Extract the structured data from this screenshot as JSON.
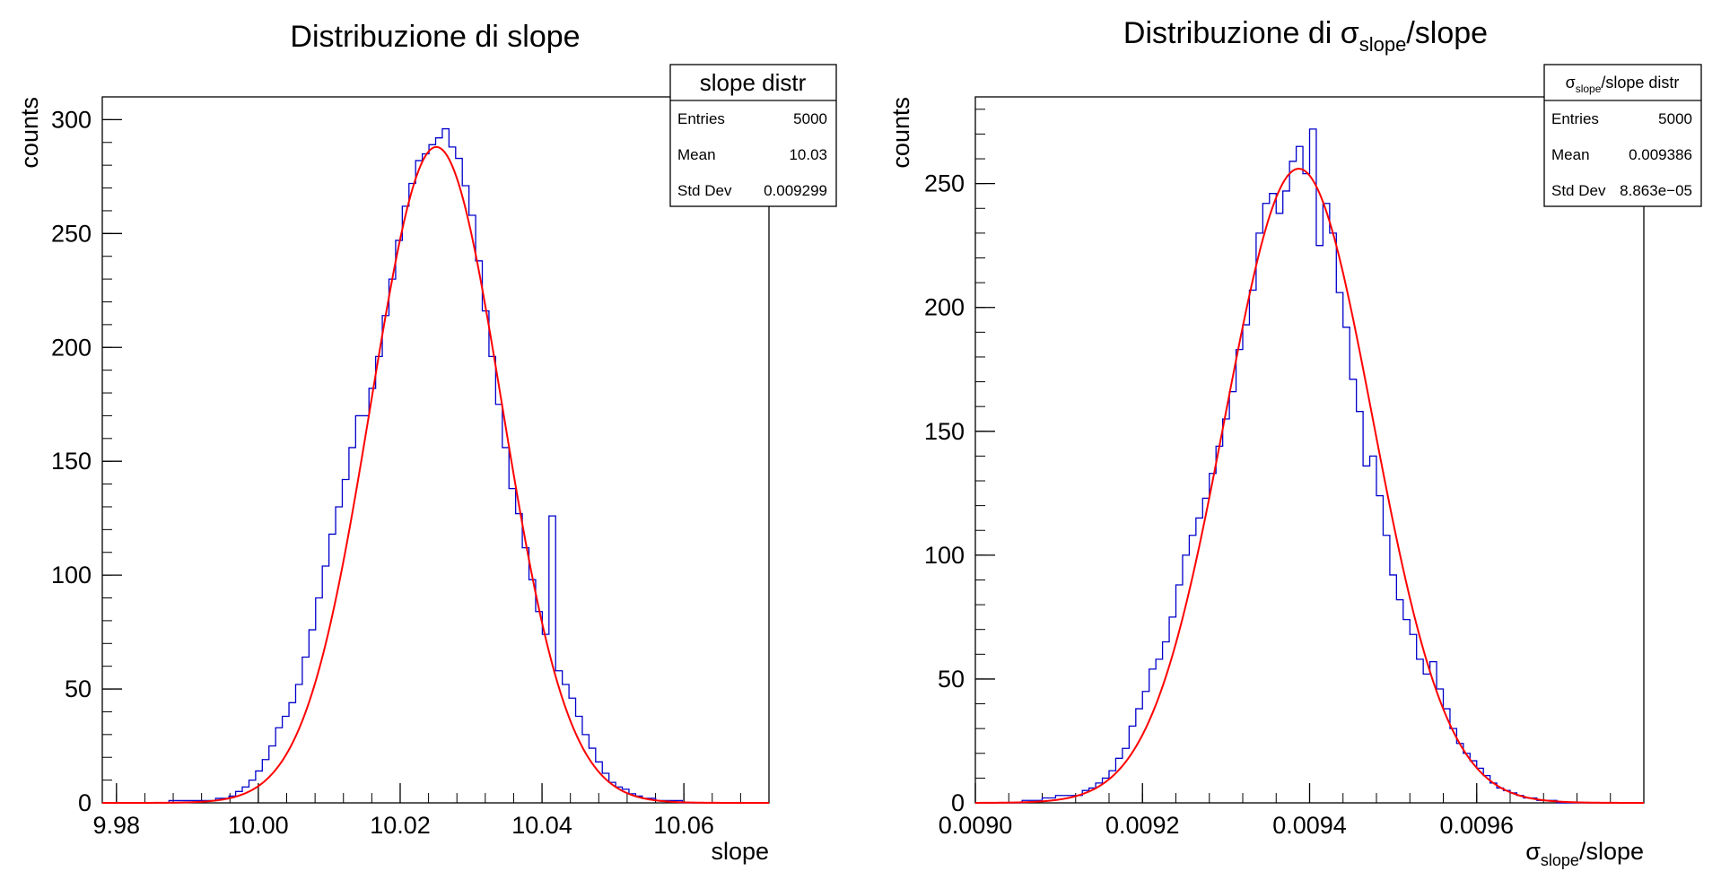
{
  "colors": {
    "histogram": "#0000cc",
    "fit": "#ff0000",
    "frame": "#000000",
    "background": "#ffffff"
  },
  "chart_data": [
    {
      "type": "bar",
      "style": "step-histogram",
      "title": "Distribuzione di slope",
      "xlabel": "slope",
      "ylabel": "counts",
      "xlim": [
        9.978,
        10.072
      ],
      "ylim": [
        0,
        310
      ],
      "xticks": [
        9.98,
        10.0,
        10.02,
        10.04,
        10.06
      ],
      "xtick_labels": [
        "9.98",
        "10.00",
        "10.02",
        "10.04",
        "10.06"
      ],
      "yticks": [
        0,
        50,
        100,
        150,
        200,
        250,
        300
      ],
      "ytick_labels": [
        "0",
        "50",
        "100",
        "150",
        "200",
        "250",
        "300"
      ],
      "bin_edges_start": 9.978,
      "bin_width": 0.00094,
      "values": [
        0,
        0,
        0,
        0,
        0,
        0,
        0,
        0,
        0,
        0,
        1,
        1,
        1,
        1,
        1,
        1,
        1,
        2,
        2,
        3,
        5,
        7,
        10,
        14,
        19,
        25,
        33,
        38,
        44,
        52,
        64,
        76,
        90,
        104,
        118,
        130,
        142,
        156,
        170,
        170,
        182,
        196,
        214,
        230,
        247,
        262,
        272,
        282,
        285,
        289,
        292,
        296,
        288,
        283,
        271,
        258,
        238,
        216,
        196,
        175,
        156,
        138,
        127,
        112,
        98,
        84,
        74,
        126,
        58,
        52,
        46,
        38,
        30,
        24,
        18,
        13,
        9,
        7,
        6,
        4,
        3,
        2,
        2,
        1,
        1,
        1,
        1,
        0,
        0,
        0,
        0,
        0,
        0,
        0,
        0,
        0,
        0,
        0,
        0,
        0
      ],
      "fit": {
        "function": "gaus",
        "amplitude": 288,
        "mean": 10.0251,
        "sigma": 0.00927
      },
      "stats": {
        "title": "slope distr",
        "rows": [
          {
            "label": "Entries",
            "value": "5000"
          },
          {
            "label": "Mean",
            "value": "10.03"
          },
          {
            "label": "Std Dev",
            "value": "0.009299"
          }
        ]
      }
    },
    {
      "type": "bar",
      "style": "step-histogram",
      "title_text": "Distribuzione di ",
      "title_symbol": "σ",
      "title_subscript": "slope",
      "title_suffix": "/slope",
      "xlabel_symbol": "σ",
      "xlabel_subscript": "slope",
      "xlabel_suffix": "/slope",
      "ylabel": "counts",
      "xlim": [
        0.009,
        0.0098
      ],
      "ylim": [
        0,
        285
      ],
      "xticks": [
        0.009,
        0.0092,
        0.0094,
        0.0096
      ],
      "xtick_labels": [
        "0.0090",
        "0.0092",
        "0.0094",
        "0.0096"
      ],
      "yticks": [
        0,
        50,
        100,
        150,
        200,
        250
      ],
      "ytick_labels": [
        "0",
        "50",
        "100",
        "150",
        "200",
        "250"
      ],
      "bin_edges_start": 0.009,
      "bin_width": 8e-06,
      "values": [
        0,
        0,
        0,
        0,
        0,
        0,
        0,
        1,
        1,
        1,
        2,
        2,
        3,
        3,
        3,
        3,
        5,
        6,
        8,
        10,
        13,
        18,
        22,
        31,
        38,
        45,
        54,
        58,
        65,
        75,
        88,
        100,
        108,
        115,
        123,
        133,
        144,
        155,
        166,
        183,
        193,
        207,
        230,
        242,
        246,
        238,
        247,
        259,
        265,
        254,
        272,
        225,
        242,
        230,
        206,
        192,
        171,
        158,
        136,
        140,
        124,
        108,
        92,
        82,
        74,
        68,
        58,
        52,
        57,
        46,
        38,
        30,
        24,
        20,
        17,
        14,
        11,
        8,
        6,
        5,
        4,
        3,
        2,
        2,
        1,
        1,
        1,
        0,
        0,
        0,
        0,
        0,
        0,
        0,
        0,
        0,
        0,
        0,
        0,
        0
      ],
      "fit": {
        "function": "gaus",
        "amplitude": 256,
        "mean": 0.009387,
        "sigma": 8.85e-05
      },
      "stats": {
        "title_symbol": "σ",
        "title_subscript": "slope",
        "title_suffix": "/slope distr",
        "rows": [
          {
            "label": "Entries",
            "value": "5000"
          },
          {
            "label": "Mean",
            "value": "0.009386"
          },
          {
            "label": "Std Dev",
            "value": "8.863e−05"
          }
        ]
      }
    }
  ]
}
